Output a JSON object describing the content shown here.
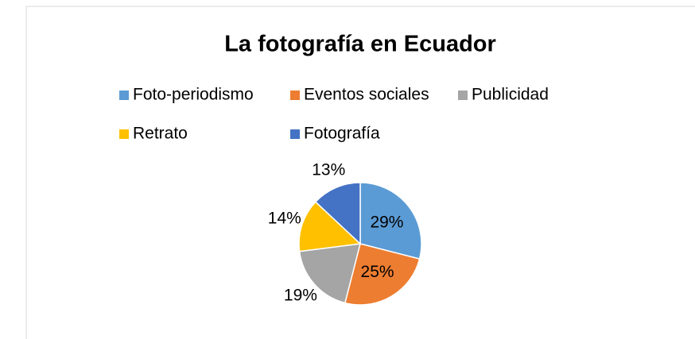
{
  "chart_data": {
    "type": "pie",
    "title": "La fotografía en Ecuador",
    "categories": [
      "Foto-periodismo",
      "Eventos sociales",
      "Publicidad",
      "Retrato",
      "Fotografía"
    ],
    "values": [
      29,
      25,
      19,
      14,
      13
    ],
    "value_labels": [
      "29%",
      "25%",
      "19%",
      "14%",
      "13%"
    ],
    "colors": [
      "#5b9bd5",
      "#ed7d31",
      "#a5a5a5",
      "#ffc000",
      "#4472c4"
    ],
    "legend": "top"
  }
}
